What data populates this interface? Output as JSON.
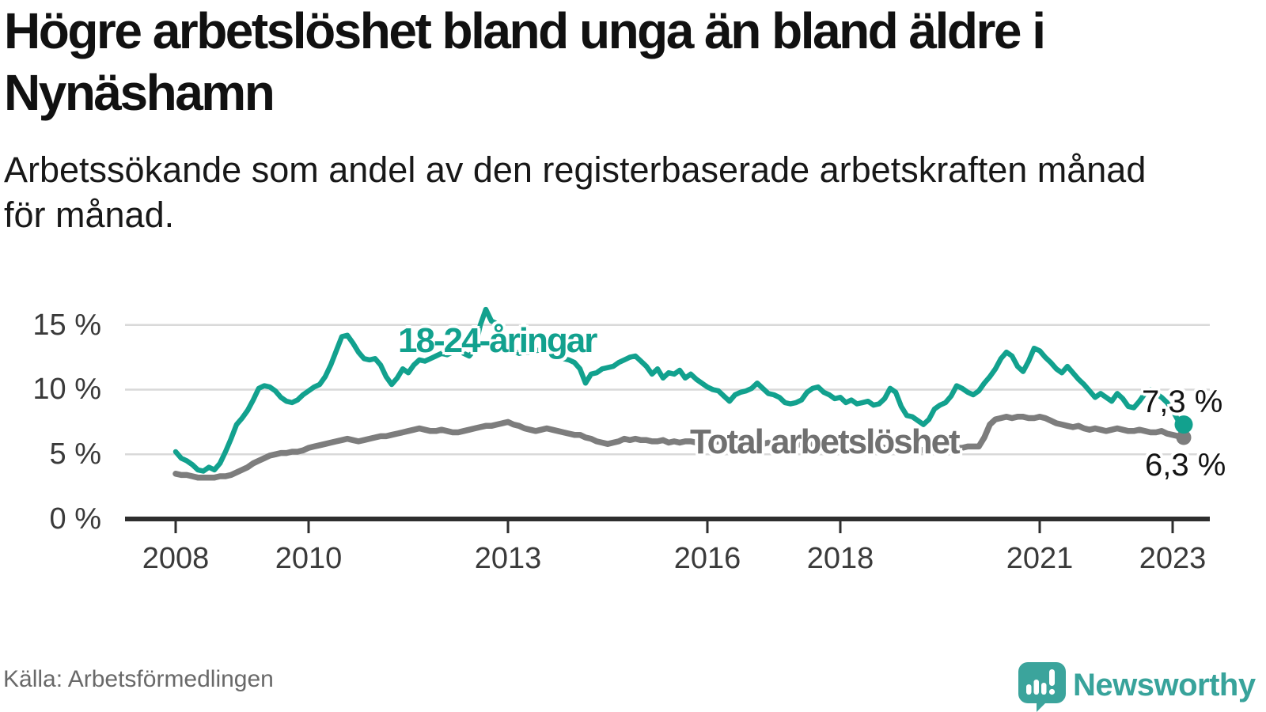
{
  "header": {
    "title_lines": [
      "Högre arbetslöshet bland unga än bland äldre i",
      "Nynäshamn"
    ],
    "subtitle_lines": [
      "Arbetssökande som andel av den registerbaserade arbetskraften månad",
      "för månad."
    ]
  },
  "chart_data": {
    "type": "line",
    "title": "Högre arbetslöshet bland unga än bland äldre i Nynäshamn",
    "subtitle": "Arbetssökande som andel av den registerbaserade arbetskraften månad för månad.",
    "unit": "%",
    "x_start_year": 2008,
    "x_start": "2008-01",
    "x_end": "2023-03",
    "points_per_year": 12,
    "x_tick_years": [
      2008,
      2010,
      2013,
      2016,
      2018,
      2021,
      2023
    ],
    "x_tick_labels": [
      "2008",
      "2010",
      "2013",
      "2016",
      "2018",
      "2021",
      "2023"
    ],
    "y_ticks": [
      0,
      5,
      10,
      15
    ],
    "y_tick_labels": [
      "0 %",
      "5 %",
      "10 %",
      "15 %"
    ],
    "ylim": [
      0,
      16.5
    ],
    "grid": "horizontal",
    "legend_position": "inline-labels",
    "series": [
      {
        "name": "18-24-åringar",
        "color": "#12a18e",
        "end_label": "7,3 %",
        "end_value": 7.3,
        "values": [
          5.2,
          4.7,
          4.5,
          4.2,
          3.8,
          3.7,
          4.0,
          3.8,
          4.3,
          5.2,
          6.2,
          7.3,
          7.8,
          8.4,
          9.2,
          10.1,
          10.3,
          10.2,
          9.9,
          9.4,
          9.1,
          9.0,
          9.2,
          9.6,
          9.9,
          10.2,
          10.4,
          11.0,
          11.9,
          13.0,
          14.1,
          14.2,
          13.6,
          12.9,
          12.4,
          12.3,
          12.4,
          11.9,
          11.0,
          10.4,
          10.9,
          11.6,
          11.3,
          11.9,
          12.3,
          12.2,
          12.4,
          12.6,
          12.8,
          12.7,
          12.9,
          13.0,
          12.8,
          12.6,
          13.1,
          15.0,
          16.2,
          15.3,
          15.1,
          14.0,
          13.4,
          13.0,
          12.8,
          12.9,
          12.9,
          13.0,
          13.1,
          12.9,
          12.7,
          12.5,
          12.4,
          12.3,
          12.1,
          11.6,
          10.5,
          11.2,
          11.3,
          11.6,
          11.7,
          11.8,
          12.1,
          12.3,
          12.5,
          12.6,
          12.2,
          11.8,
          11.2,
          11.6,
          10.9,
          11.3,
          11.2,
          11.5,
          10.9,
          11.2,
          10.8,
          10.5,
          10.2,
          10.0,
          9.9,
          9.5,
          9.1,
          9.6,
          9.8,
          9.9,
          10.1,
          10.5,
          10.1,
          9.7,
          9.6,
          9.4,
          9.0,
          8.9,
          9.0,
          9.2,
          9.8,
          10.1,
          10.2,
          9.8,
          9.6,
          9.3,
          9.4,
          9.0,
          9.2,
          8.9,
          9.0,
          9.1,
          8.8,
          8.9,
          9.3,
          10.1,
          9.8,
          8.7,
          8.0,
          7.9,
          7.6,
          7.3,
          7.7,
          8.5,
          8.8,
          9.0,
          9.5,
          10.3,
          10.1,
          9.8,
          9.6,
          9.9,
          10.5,
          11.0,
          11.6,
          12.4,
          12.9,
          12.6,
          11.8,
          11.4,
          12.2,
          13.2,
          13.0,
          12.5,
          12.1,
          11.6,
          11.3,
          11.8,
          11.3,
          10.8,
          10.4,
          9.9,
          9.4,
          9.7,
          9.4,
          9.1,
          9.7,
          9.3,
          8.7,
          8.6,
          9.1,
          9.7,
          10.0,
          9.7,
          9.4,
          9.0,
          8.4,
          7.6,
          7.3
        ]
      },
      {
        "name": "Total arbetslöshet",
        "color": "#7d7d7d",
        "end_label": "6,3 %",
        "end_value": 6.3,
        "values": [
          3.5,
          3.4,
          3.4,
          3.3,
          3.2,
          3.2,
          3.2,
          3.2,
          3.3,
          3.3,
          3.4,
          3.6,
          3.8,
          4.0,
          4.3,
          4.5,
          4.7,
          4.9,
          5.0,
          5.1,
          5.1,
          5.2,
          5.2,
          5.3,
          5.5,
          5.6,
          5.7,
          5.8,
          5.9,
          6.0,
          6.1,
          6.2,
          6.1,
          6.0,
          6.1,
          6.2,
          6.3,
          6.4,
          6.4,
          6.5,
          6.6,
          6.7,
          6.8,
          6.9,
          7.0,
          6.9,
          6.8,
          6.8,
          6.9,
          6.8,
          6.7,
          6.7,
          6.8,
          6.9,
          7.0,
          7.1,
          7.2,
          7.2,
          7.3,
          7.4,
          7.5,
          7.3,
          7.2,
          7.0,
          6.9,
          6.8,
          6.9,
          7.0,
          6.9,
          6.8,
          6.7,
          6.6,
          6.5,
          6.5,
          6.3,
          6.2,
          6.0,
          5.9,
          5.8,
          5.9,
          6.0,
          6.2,
          6.1,
          6.2,
          6.1,
          6.1,
          6.0,
          6.0,
          6.1,
          5.9,
          6.0,
          5.9,
          6.0,
          6.0,
          5.9,
          6.0,
          5.9,
          5.9,
          6.0,
          5.9,
          5.8,
          5.9,
          5.8,
          5.7,
          5.8,
          5.9,
          5.8,
          5.9,
          5.9,
          5.8,
          5.8,
          5.7,
          5.7,
          5.8,
          5.9,
          5.8,
          5.7,
          5.7,
          5.6,
          5.7,
          5.7,
          5.6,
          5.6,
          5.5,
          5.5,
          5.6,
          5.7,
          5.6,
          5.5,
          5.4,
          5.4,
          5.5,
          5.5,
          5.4,
          5.4,
          5.3,
          5.4,
          5.5,
          5.6,
          5.5,
          5.4,
          5.5,
          5.5,
          5.6,
          5.6,
          5.6,
          6.3,
          7.3,
          7.7,
          7.8,
          7.9,
          7.8,
          7.9,
          7.9,
          7.8,
          7.8,
          7.9,
          7.8,
          7.6,
          7.4,
          7.3,
          7.2,
          7.1,
          7.2,
          7.0,
          6.9,
          7.0,
          6.9,
          6.8,
          6.9,
          7.0,
          6.9,
          6.8,
          6.8,
          6.9,
          6.8,
          6.7,
          6.7,
          6.8,
          6.6,
          6.5,
          6.4,
          6.3
        ]
      }
    ]
  },
  "footer": {
    "source": "Källa: Arbetsförmedlingen",
    "brand": "Newsworthy"
  },
  "colors": {
    "accent_teal": "#12a18e",
    "line_gray": "#7d7d7d",
    "grid": "#d9d9d9",
    "axis": "#2e2e2e",
    "logo_teal": "#3ba49c",
    "text": "#111111"
  }
}
